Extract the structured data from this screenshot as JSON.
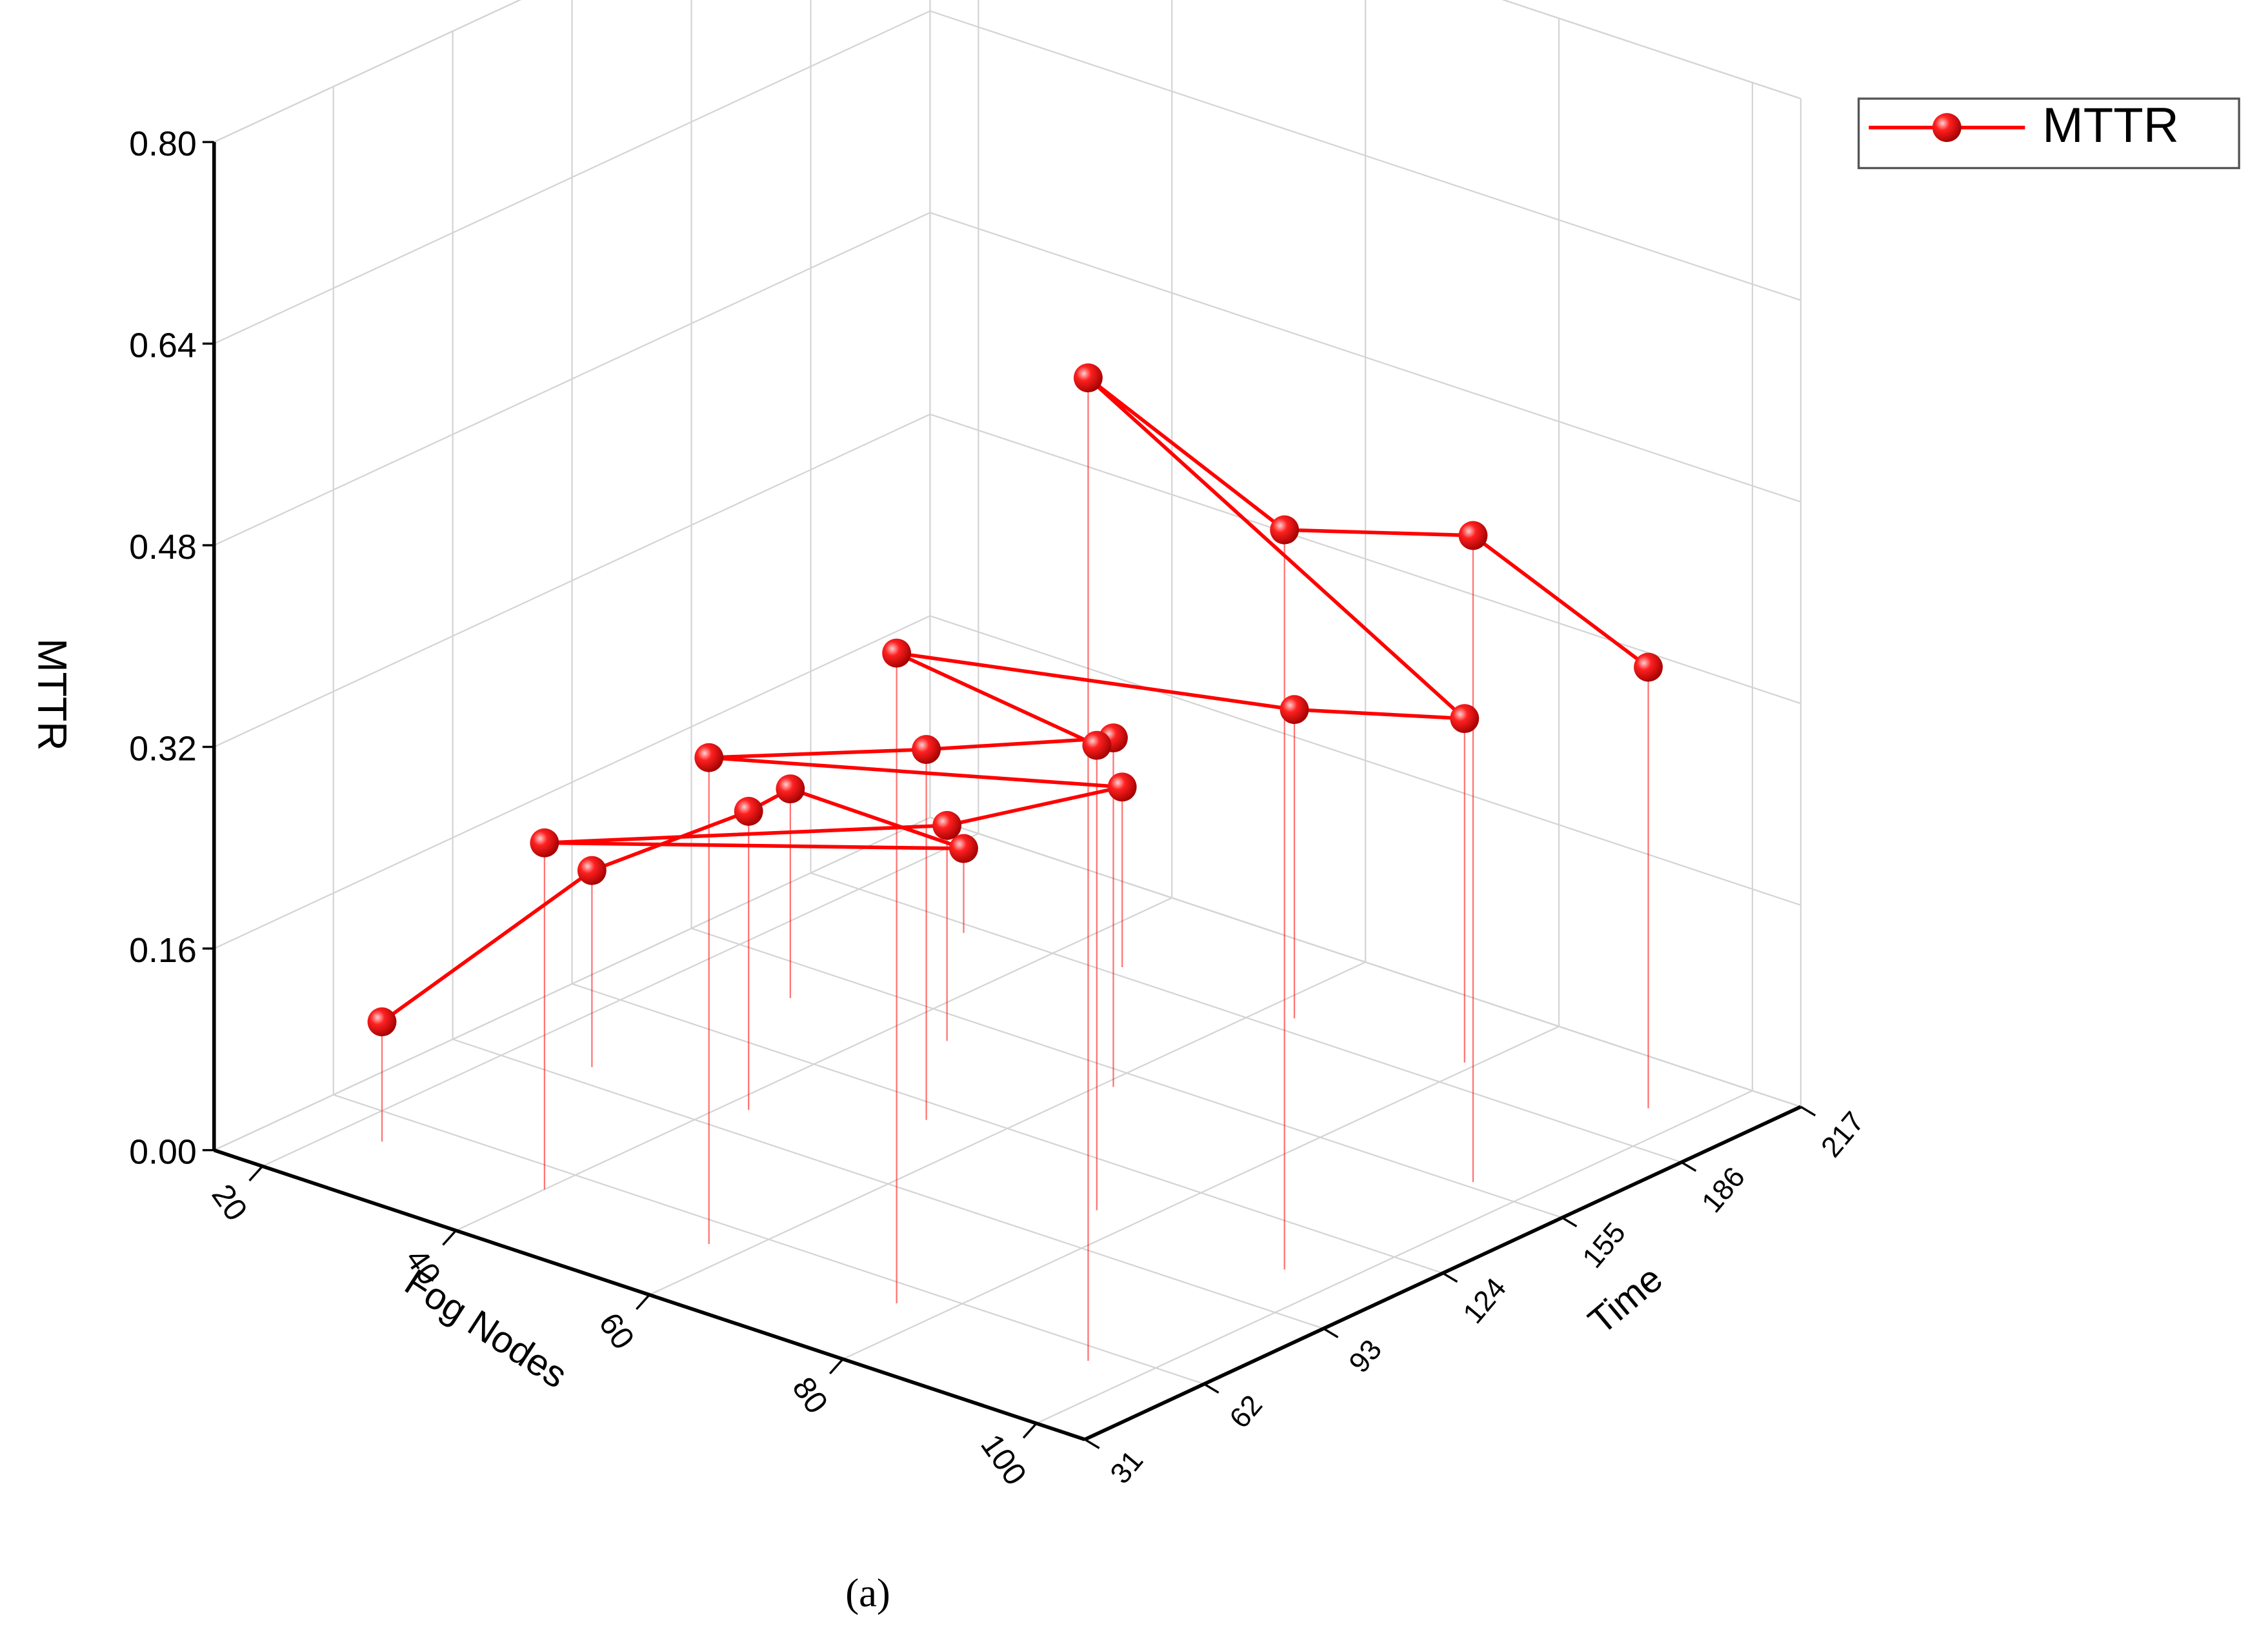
{
  "chart_data": {
    "type": "line3d",
    "x_label": "Fog Nodes",
    "y_label": "Time",
    "z_label": "MTTR",
    "caption": "(a)",
    "xlim": [
      15,
      105
    ],
    "xticks": [
      20,
      40,
      60,
      80,
      100
    ],
    "ylim": [
      31,
      217
    ],
    "yticks": [
      31,
      62,
      93,
      124,
      155,
      186,
      217
    ],
    "zlim": [
      0,
      0.8
    ],
    "zticks": [
      {
        "value": 0,
        "label": "0.00"
      },
      0.16,
      0.32,
      0.48,
      0.64,
      {
        "value": 0.8,
        "label": "0.80"
      }
    ],
    "grid": true,
    "legend": "upper right",
    "series": [
      {
        "name": "MTTR",
        "color": "#ff0000",
        "x": [
          24,
          27,
          42,
          30,
          32,
          40,
          45,
          46,
          57,
          54,
          61,
          76,
          76,
          63,
          79,
          95,
          95,
          95,
          96
        ],
        "y": [
          52,
          99,
          102,
          143,
          183,
          54,
          146,
          189,
          54,
          118,
          149,
          107,
          55,
          191,
          195,
          57,
          108,
          157,
          200
        ],
        "values": [
          0.095,
          0.156,
          0.237,
          0.166,
          0.067,
          0.275,
          0.171,
          0.143,
          0.386,
          0.294,
          0.277,
          0.369,
          0.516,
          0.245,
          0.273,
          0.78,
          0.587,
          0.513,
          0.35
        ]
      }
    ]
  }
}
